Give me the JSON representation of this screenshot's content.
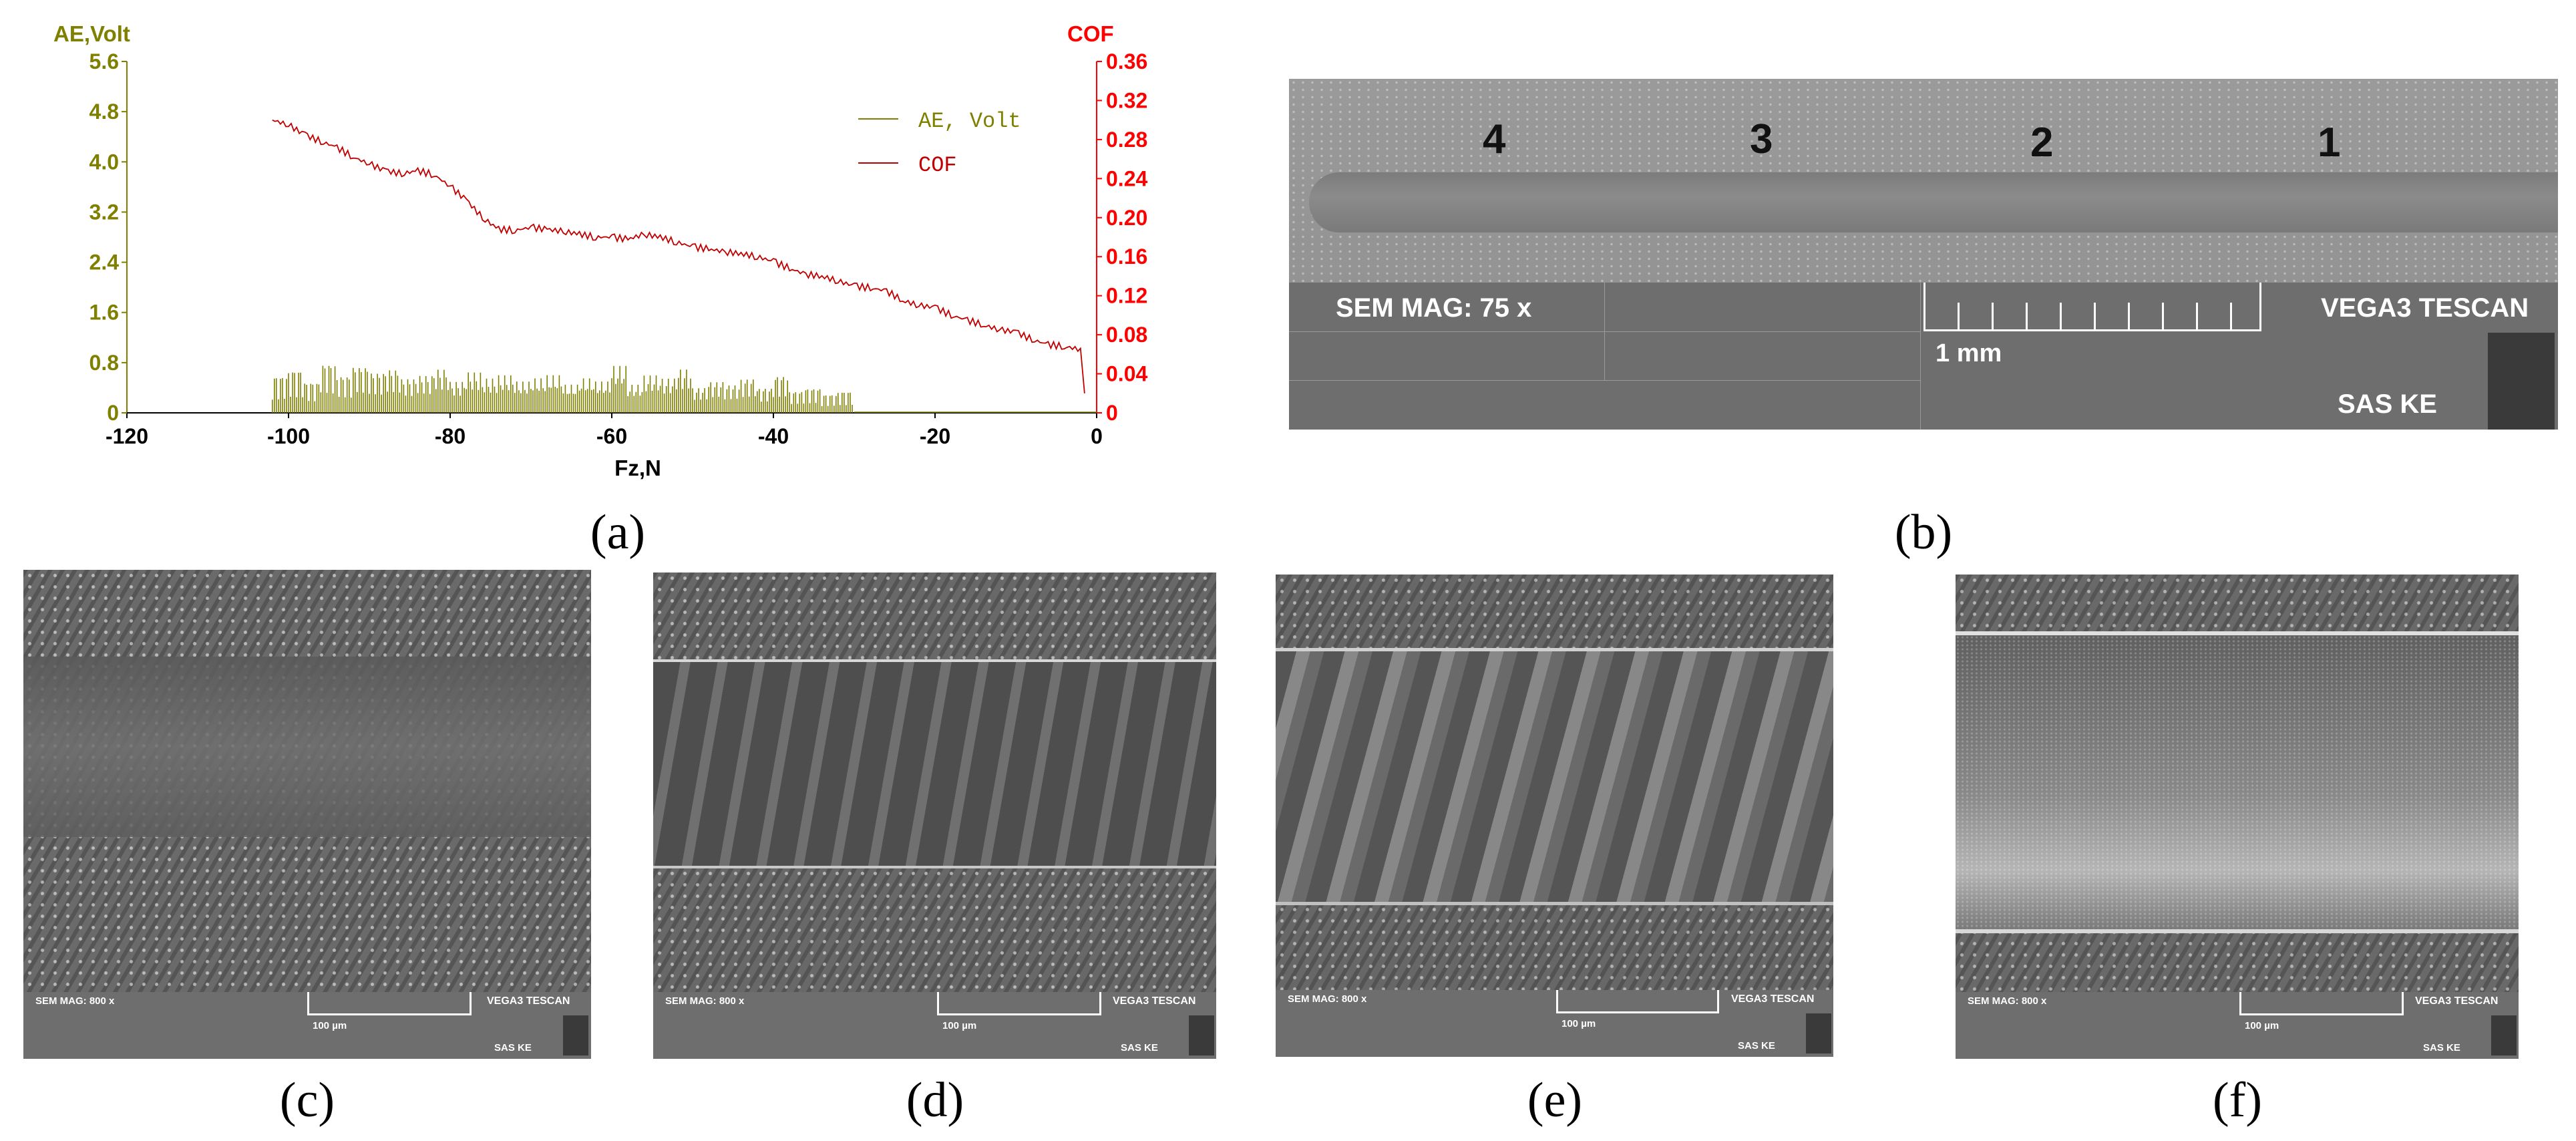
{
  "chart_data": {
    "type": "line",
    "panel_label": "(a)",
    "xlabel": "Fz,N",
    "x_ticks": [
      -120,
      -100,
      -80,
      -60,
      -40,
      -20,
      0
    ],
    "xlim": [
      -120,
      0
    ],
    "left_axis": {
      "label": "AE,Volt",
      "ticks": [
        "0",
        "0.8",
        "1.6",
        "2.4",
        "3.2",
        "4.0",
        "4.8",
        "5.6"
      ],
      "ylim": [
        0,
        5.6
      ],
      "color": "#7f7f00"
    },
    "right_axis": {
      "label": "COF",
      "ticks": [
        "0",
        "0.04",
        "0.08",
        "0.12",
        "0.16",
        "0.20",
        "0.24",
        "0.28",
        "0.32",
        "0.36"
      ],
      "ylim": [
        0,
        0.36
      ],
      "color": "#ff0000"
    },
    "legend": [
      {
        "name": "AE, Volt",
        "color": "#7f7f00"
      },
      {
        "name": "COF",
        "color": "#c00000"
      }
    ],
    "legend_position": "top-right",
    "series": [
      {
        "name": "COF",
        "axis": "right",
        "color": "#c00000",
        "x": [
          -102,
          -100,
          -98,
          -96,
          -94,
          -92,
          -90,
          -88,
          -86,
          -84,
          -82,
          -80,
          -78,
          -76,
          -74,
          -72,
          -70,
          -68,
          -66,
          -64,
          -62,
          -60,
          -58,
          -56,
          -54,
          -52,
          -50,
          -48,
          -46,
          -44,
          -42,
          -40,
          -38,
          -36,
          -34,
          -32,
          -30,
          -28,
          -26,
          -24,
          -22,
          -20,
          -18,
          -16,
          -14,
          -12,
          -10,
          -8,
          -6,
          -4,
          -2,
          -1.5
        ],
        "y": [
          0.3,
          0.295,
          0.285,
          0.278,
          0.272,
          0.262,
          0.255,
          0.248,
          0.245,
          0.248,
          0.244,
          0.232,
          0.218,
          0.2,
          0.188,
          0.187,
          0.19,
          0.188,
          0.186,
          0.183,
          0.18,
          0.18,
          0.178,
          0.183,
          0.18,
          0.175,
          0.17,
          0.168,
          0.165,
          0.163,
          0.16,
          0.155,
          0.148,
          0.142,
          0.14,
          0.135,
          0.13,
          0.128,
          0.125,
          0.115,
          0.11,
          0.108,
          0.1,
          0.095,
          0.09,
          0.085,
          0.083,
          0.075,
          0.07,
          0.068,
          0.065,
          0.02
        ]
      },
      {
        "name": "AE, Volt",
        "axis": "left",
        "color": "#7f7f00",
        "x": [
          -102,
          -100,
          -98,
          -96,
          -94,
          -92,
          -90,
          -88,
          -86,
          -84,
          -82,
          -80,
          -78,
          -76,
          -74,
          -72,
          -70,
          -68,
          -66,
          -64,
          -62,
          -60,
          -58,
          -56,
          -54,
          -52,
          -50,
          -48,
          -46,
          -44,
          -42,
          -40,
          -38,
          -36,
          -34,
          -32,
          -30
        ],
        "y": [
          0.6,
          0.7,
          0.5,
          0.8,
          0.6,
          0.75,
          0.65,
          0.7,
          0.55,
          0.6,
          0.7,
          0.5,
          0.65,
          0.55,
          0.6,
          0.5,
          0.55,
          0.6,
          0.45,
          0.55,
          0.5,
          0.75,
          0.45,
          0.6,
          0.55,
          0.7,
          0.4,
          0.5,
          0.45,
          0.55,
          0.4,
          0.6,
          0.35,
          0.4,
          0.3,
          0.35,
          0.2
        ]
      }
    ]
  },
  "sem_b": {
    "caption": "(b)",
    "mag": "SEM MAG: 75 x",
    "brand": "VEGA3 TESCAN",
    "lab": "SAS KE",
    "scale": "1 mm",
    "track_labels": [
      "4",
      "3",
      "2",
      "1"
    ]
  },
  "sem_panels": [
    {
      "caption": "(c)",
      "mag": "SEM MAG: 800 x",
      "brand": "VEGA3 TESCAN",
      "lab": "SAS KE",
      "scale": "100 µm"
    },
    {
      "caption": "(d)",
      "mag": "SEM MAG: 800 x",
      "brand": "VEGA3 TESCAN",
      "lab": "SAS KE",
      "scale": "100 µm"
    },
    {
      "caption": "(e)",
      "mag": "SEM MAG: 800 x",
      "brand": "VEGA3 TESCAN",
      "lab": "SAS KE",
      "scale": "100 µm"
    },
    {
      "caption": "(f)",
      "mag": "SEM MAG: 800 x",
      "brand": "VEGA3 TESCAN",
      "lab": "SAS KE",
      "scale": "100 µm"
    }
  ]
}
